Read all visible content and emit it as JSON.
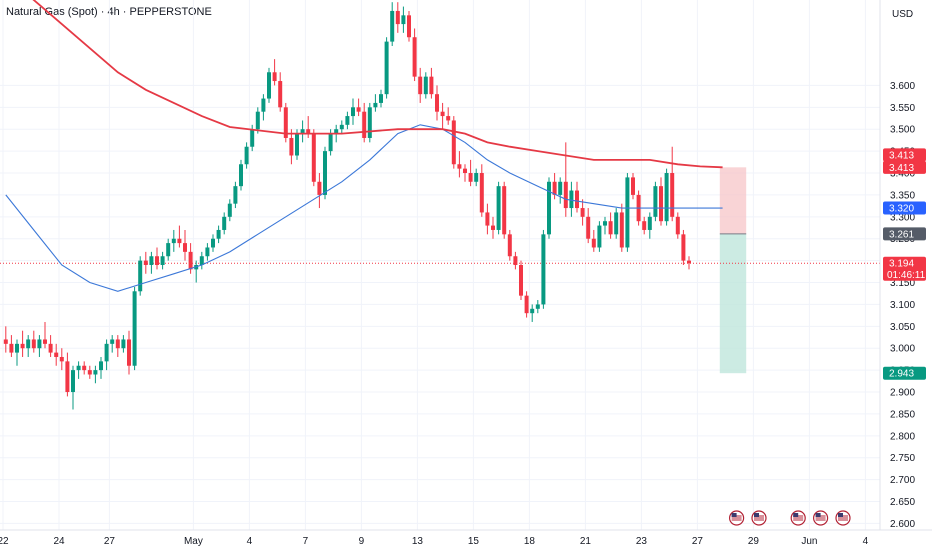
{
  "header": {
    "title": "Natural Gas (Spot) · 4h · PEPPERSTONE"
  },
  "chart_data": {
    "type": "candlestick",
    "currency": "USD",
    "ylim": [
      2.585,
      3.795
    ],
    "y_ticks": [
      3.6,
      3.55,
      3.5,
      3.45,
      3.4,
      3.35,
      3.3,
      3.25,
      3.2,
      3.15,
      3.1,
      3.05,
      3.0,
      2.95,
      2.9,
      2.85,
      2.8,
      2.75,
      2.7,
      2.65,
      2.6
    ],
    "y_tick_labels": [
      "3.600",
      "3.550",
      "3.500",
      "3.450",
      "3.400",
      "3.350",
      "3.300",
      "3.250",
      "3.200",
      "3.150",
      "3.100",
      "3.050",
      "3.000",
      "2.950",
      "2.900",
      "2.850",
      "2.800",
      "2.750",
      "2.700",
      "2.650",
      "2.600"
    ],
    "x_ticks": [
      {
        "label": "22",
        "bar": 0
      },
      {
        "label": "24",
        "bar": 10
      },
      {
        "label": "27",
        "bar": 19
      },
      {
        "label": "May",
        "bar": 34
      },
      {
        "label": "4",
        "bar": 44
      },
      {
        "label": "7",
        "bar": 54
      },
      {
        "label": "9",
        "bar": 64
      },
      {
        "label": "13",
        "bar": 74
      },
      {
        "label": "15",
        "bar": 84
      },
      {
        "label": "18",
        "bar": 94
      },
      {
        "label": "21",
        "bar": 104
      },
      {
        "label": "23",
        "bar": 114
      },
      {
        "label": "27",
        "bar": 124
      },
      {
        "label": "29",
        "bar": 134
      },
      {
        "label": "Jun",
        "bar": 144
      },
      {
        "label": "4",
        "bar": 154
      }
    ],
    "candles_ohlc": [
      [
        3.02,
        3.05,
        2.99,
        3.01
      ],
      [
        3.01,
        3.03,
        2.98,
        2.99
      ],
      [
        2.99,
        3.02,
        2.96,
        3.01
      ],
      [
        3.01,
        3.04,
        2.98,
        3.0
      ],
      [
        3.0,
        3.03,
        2.98,
        3.02
      ],
      [
        3.02,
        3.04,
        2.99,
        3.0
      ],
      [
        3.0,
        3.03,
        2.98,
        3.02
      ],
      [
        3.02,
        3.06,
        3.0,
        3.01
      ],
      [
        3.01,
        3.03,
        2.98,
        2.99
      ],
      [
        2.99,
        3.01,
        2.96,
        2.98
      ],
      [
        2.98,
        3.0,
        2.95,
        2.97
      ],
      [
        2.97,
        2.99,
        2.89,
        2.9
      ],
      [
        2.9,
        2.96,
        2.86,
        2.95
      ],
      [
        2.95,
        2.97,
        2.93,
        2.96
      ],
      [
        2.96,
        2.97,
        2.94,
        2.95
      ],
      [
        2.95,
        2.96,
        2.93,
        2.94
      ],
      [
        2.94,
        2.96,
        2.92,
        2.95
      ],
      [
        2.95,
        2.98,
        2.93,
        2.97
      ],
      [
        2.97,
        3.02,
        2.95,
        3.01
      ],
      [
        3.01,
        3.03,
        2.99,
        3.02
      ],
      [
        3.02,
        3.03,
        2.98,
        3.0
      ],
      [
        3.0,
        3.03,
        2.99,
        3.02
      ],
      [
        3.02,
        3.04,
        2.94,
        2.96
      ],
      [
        2.96,
        3.14,
        2.95,
        3.13
      ],
      [
        3.13,
        3.21,
        3.12,
        3.2
      ],
      [
        3.2,
        3.22,
        3.17,
        3.19
      ],
      [
        3.19,
        3.22,
        3.17,
        3.21
      ],
      [
        3.21,
        3.23,
        3.18,
        3.19
      ],
      [
        3.19,
        3.22,
        3.18,
        3.21
      ],
      [
        3.21,
        3.25,
        3.2,
        3.24
      ],
      [
        3.24,
        3.27,
        3.22,
        3.25
      ],
      [
        3.25,
        3.28,
        3.23,
        3.24
      ],
      [
        3.24,
        3.27,
        3.2,
        3.22
      ],
      [
        3.22,
        3.24,
        3.17,
        3.18
      ],
      [
        3.18,
        3.2,
        3.15,
        3.19
      ],
      [
        3.19,
        3.22,
        3.18,
        3.21
      ],
      [
        3.21,
        3.24,
        3.2,
        3.23
      ],
      [
        3.23,
        3.26,
        3.22,
        3.25
      ],
      [
        3.25,
        3.28,
        3.24,
        3.27
      ],
      [
        3.27,
        3.31,
        3.26,
        3.3
      ],
      [
        3.3,
        3.34,
        3.29,
        3.33
      ],
      [
        3.33,
        3.38,
        3.32,
        3.37
      ],
      [
        3.37,
        3.43,
        3.36,
        3.42
      ],
      [
        3.42,
        3.47,
        3.41,
        3.46
      ],
      [
        3.46,
        3.51,
        3.45,
        3.5
      ],
      [
        3.5,
        3.55,
        3.49,
        3.54
      ],
      [
        3.54,
        3.58,
        3.52,
        3.57
      ],
      [
        3.57,
        3.64,
        3.56,
        3.63
      ],
      [
        3.63,
        3.66,
        3.6,
        3.61
      ],
      [
        3.61,
        3.63,
        3.54,
        3.55
      ],
      [
        3.55,
        3.56,
        3.47,
        3.48
      ],
      [
        3.48,
        3.5,
        3.42,
        3.44
      ],
      [
        3.44,
        3.5,
        3.43,
        3.49
      ],
      [
        3.49,
        3.52,
        3.47,
        3.5
      ],
      [
        3.5,
        3.53,
        3.48,
        3.49
      ],
      [
        3.49,
        3.5,
        3.37,
        3.38
      ],
      [
        3.38,
        3.4,
        3.32,
        3.35
      ],
      [
        3.35,
        3.46,
        3.34,
        3.45
      ],
      [
        3.45,
        3.5,
        3.44,
        3.49
      ],
      [
        3.49,
        3.51,
        3.47,
        3.5
      ],
      [
        3.5,
        3.52,
        3.49,
        3.51
      ],
      [
        3.51,
        3.54,
        3.5,
        3.53
      ],
      [
        3.53,
        3.57,
        3.51,
        3.55
      ],
      [
        3.55,
        3.57,
        3.53,
        3.54
      ],
      [
        3.54,
        3.56,
        3.47,
        3.48
      ],
      [
        3.48,
        3.56,
        3.47,
        3.55
      ],
      [
        3.55,
        3.58,
        3.54,
        3.56
      ],
      [
        3.56,
        3.59,
        3.55,
        3.58
      ],
      [
        3.58,
        3.71,
        3.57,
        3.7
      ],
      [
        3.7,
        3.79,
        3.69,
        3.77
      ],
      [
        3.77,
        3.79,
        3.72,
        3.74
      ],
      [
        3.74,
        3.78,
        3.72,
        3.76
      ],
      [
        3.76,
        3.77,
        3.7,
        3.71
      ],
      [
        3.71,
        3.73,
        3.61,
        3.62
      ],
      [
        3.62,
        3.64,
        3.56,
        3.58
      ],
      [
        3.58,
        3.63,
        3.57,
        3.62
      ],
      [
        3.62,
        3.64,
        3.57,
        3.58
      ],
      [
        3.58,
        3.6,
        3.52,
        3.54
      ],
      [
        3.54,
        3.56,
        3.5,
        3.53
      ],
      [
        3.53,
        3.55,
        3.51,
        3.52
      ],
      [
        3.52,
        3.53,
        3.41,
        3.42
      ],
      [
        3.42,
        3.45,
        3.39,
        3.41
      ],
      [
        3.41,
        3.42,
        3.38,
        3.4
      ],
      [
        3.4,
        3.43,
        3.37,
        3.38
      ],
      [
        3.38,
        3.41,
        3.37,
        3.4
      ],
      [
        3.4,
        3.42,
        3.3,
        3.31
      ],
      [
        3.31,
        3.33,
        3.26,
        3.28
      ],
      [
        3.28,
        3.3,
        3.25,
        3.27
      ],
      [
        3.27,
        3.38,
        3.26,
        3.37
      ],
      [
        3.37,
        3.38,
        3.25,
        3.26
      ],
      [
        3.26,
        3.27,
        3.2,
        3.21
      ],
      [
        3.21,
        3.22,
        3.18,
        3.19
      ],
      [
        3.19,
        3.2,
        3.11,
        3.12
      ],
      [
        3.12,
        3.13,
        3.07,
        3.08
      ],
      [
        3.08,
        3.1,
        3.06,
        3.09
      ],
      [
        3.09,
        3.11,
        3.08,
        3.1
      ],
      [
        3.1,
        3.27,
        3.09,
        3.26
      ],
      [
        3.26,
        3.39,
        3.25,
        3.38
      ],
      [
        3.38,
        3.4,
        3.34,
        3.35
      ],
      [
        3.35,
        3.39,
        3.33,
        3.38
      ],
      [
        3.38,
        3.47,
        3.3,
        3.32
      ],
      [
        3.32,
        3.38,
        3.3,
        3.36
      ],
      [
        3.36,
        3.38,
        3.31,
        3.32
      ],
      [
        3.32,
        3.34,
        3.28,
        3.3
      ],
      [
        3.3,
        3.32,
        3.24,
        3.25
      ],
      [
        3.25,
        3.27,
        3.22,
        3.23
      ],
      [
        3.23,
        3.29,
        3.22,
        3.28
      ],
      [
        3.28,
        3.3,
        3.26,
        3.29
      ],
      [
        3.29,
        3.31,
        3.25,
        3.26
      ],
      [
        3.26,
        3.32,
        3.25,
        3.31
      ],
      [
        3.31,
        3.33,
        3.22,
        3.23
      ],
      [
        3.23,
        3.4,
        3.22,
        3.39
      ],
      [
        3.39,
        3.4,
        3.34,
        3.35
      ],
      [
        3.35,
        3.36,
        3.28,
        3.29
      ],
      [
        3.29,
        3.3,
        3.26,
        3.27
      ],
      [
        3.27,
        3.31,
        3.25,
        3.3
      ],
      [
        3.3,
        3.38,
        3.29,
        3.37
      ],
      [
        3.37,
        3.39,
        3.28,
        3.29
      ],
      [
        3.29,
        3.41,
        3.28,
        3.4
      ],
      [
        3.4,
        3.46,
        3.29,
        3.3
      ],
      [
        3.3,
        3.31,
        3.25,
        3.26
      ],
      [
        3.26,
        3.27,
        3.19,
        3.2
      ],
      [
        3.2,
        3.21,
        3.18,
        3.194
      ]
    ],
    "ma_red": {
      "bars": [
        0,
        10,
        20,
        25,
        30,
        35,
        40,
        50,
        60,
        70,
        74,
        78,
        82,
        86,
        90,
        95,
        100,
        105,
        110,
        115,
        120,
        124,
        128
      ],
      "values": [
        3.85,
        3.74,
        3.63,
        3.59,
        3.56,
        3.53,
        3.505,
        3.49,
        3.49,
        3.5,
        3.5,
        3.5,
        3.49,
        3.47,
        3.46,
        3.45,
        3.44,
        3.43,
        3.43,
        3.43,
        3.42,
        3.415,
        3.413
      ]
    },
    "ma_blue": {
      "bars": [
        0,
        5,
        10,
        15,
        20,
        25,
        30,
        35,
        40,
        45,
        50,
        55,
        60,
        65,
        70,
        74,
        78,
        82,
        86,
        90,
        95,
        100,
        105,
        110,
        115,
        120,
        124,
        128
      ],
      "values": [
        3.35,
        3.27,
        3.19,
        3.15,
        3.13,
        3.15,
        3.17,
        3.19,
        3.22,
        3.26,
        3.3,
        3.34,
        3.38,
        3.43,
        3.49,
        3.51,
        3.5,
        3.47,
        3.43,
        3.4,
        3.37,
        3.34,
        3.33,
        3.32,
        3.32,
        3.32,
        3.32,
        3.32
      ]
    },
    "position": {
      "entry": 3.261,
      "stop": 3.413,
      "target": 2.943,
      "start_bar": 128,
      "end_bar": 132
    },
    "current_price": 3.194,
    "price_labels": [
      {
        "value": 3.413,
        "text": "3.413",
        "color": "#f23645"
      },
      {
        "value": 3.32,
        "text": "3.320",
        "color": "#2962ff"
      },
      {
        "value": 3.261,
        "text": "3.261",
        "color": "#555c68"
      },
      {
        "value": 3.194,
        "text": "3.194",
        "color": "#f23645"
      },
      {
        "value": 2.943,
        "text": "2.943",
        "color": "#089981"
      }
    ],
    "countdown": "01:46:11",
    "events": [
      {
        "bar": 131,
        "icon": "us-flag-icon"
      },
      {
        "bar": 135,
        "icon": "us-flag-icon"
      },
      {
        "bar": 142,
        "icon": "us-flag-icon"
      },
      {
        "bar": 146,
        "icon": "us-flag-icon"
      },
      {
        "bar": 150,
        "icon": "us-flag-icon"
      }
    ],
    "colors": {
      "up": "#089981",
      "down": "#f23645",
      "ma_red": "#e53945",
      "ma_blue": "#3c78d8",
      "stop_zone": "#f7c5c8",
      "target_zone": "#bfe6dc"
    }
  }
}
